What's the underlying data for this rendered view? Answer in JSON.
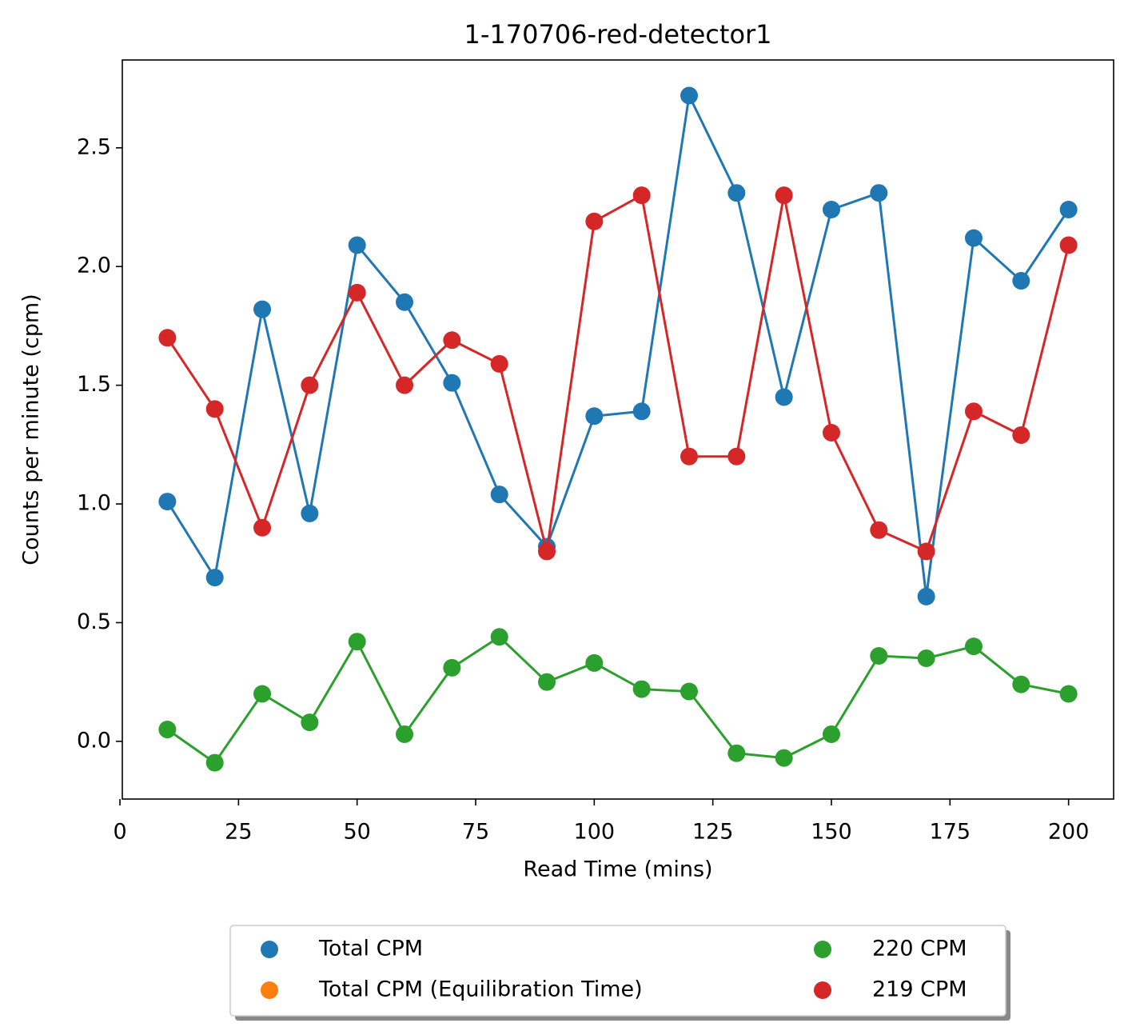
{
  "chart_data": {
    "type": "line",
    "title": "1-170706-red-detector1",
    "x_label": "Read Time (mins)",
    "y_label": "Counts per minute (cpm)",
    "x": [
      10,
      20,
      30,
      40,
      50,
      60,
      70,
      80,
      90,
      100,
      110,
      120,
      130,
      140,
      150,
      160,
      170,
      180,
      190,
      200
    ],
    "series": [
      {
        "name": "Total CPM",
        "color": "#1f77b4",
        "values": [
          1.01,
          0.69,
          1.82,
          0.96,
          2.09,
          1.85,
          1.51,
          1.04,
          0.82,
          1.37,
          1.39,
          2.72,
          2.31,
          1.45,
          2.24,
          2.31,
          0.61,
          2.12,
          1.94,
          2.24
        ]
      },
      {
        "name": "Total CPM (Equilibration Time)",
        "color": "#ff7f0e",
        "values": [
          null,
          null,
          null,
          null,
          null,
          null,
          null,
          null,
          null,
          null,
          null,
          null,
          null,
          null,
          null,
          null,
          null,
          null,
          null,
          null
        ]
      },
      {
        "name": "220 CPM",
        "color": "#2ca02c",
        "values": [
          0.05,
          -0.09,
          0.2,
          0.08,
          0.42,
          0.03,
          0.31,
          0.44,
          0.25,
          0.33,
          0.22,
          0.21,
          -0.05,
          -0.07,
          0.03,
          0.36,
          0.35,
          0.4,
          0.24,
          0.2
        ]
      },
      {
        "name": "219 CPM",
        "color": "#d62728",
        "values": [
          1.7,
          1.4,
          0.9,
          1.5,
          1.89,
          1.5,
          1.69,
          1.59,
          0.8,
          2.19,
          2.3,
          1.2,
          1.2,
          2.3,
          1.3,
          0.89,
          0.8,
          1.39,
          1.29,
          2.09
        ]
      }
    ],
    "xlim": [
      0.5,
      209.5
    ],
    "xticks": [
      0,
      25,
      50,
      75,
      100,
      125,
      150,
      175,
      200
    ],
    "ylim": [
      -0.243,
      2.87
    ],
    "yticks": [
      {
        "value": 0,
        "label": "0.0"
      },
      0.5,
      {
        "value": 1,
        "label": "1.0"
      },
      1.5,
      {
        "value": 2,
        "label": "2.0"
      },
      2.5
    ],
    "grid": false,
    "legend_position": "below"
  }
}
